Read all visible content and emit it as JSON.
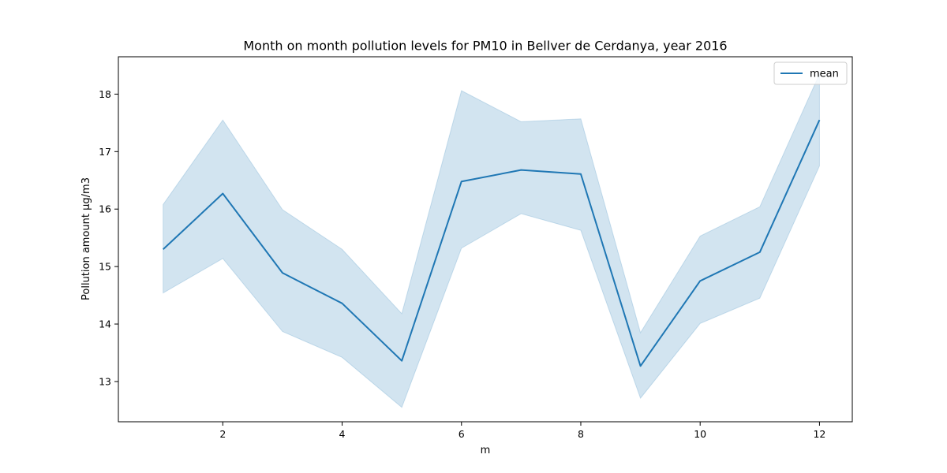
{
  "chart_data": {
    "type": "line",
    "title": "Month on month pollution levels for PM10 in Bellver de Cerdanya, year 2016",
    "xlabel": "m",
    "ylabel": "Pollution amount μg/m3",
    "xlim": [
      0.25,
      12.55
    ],
    "ylim": [
      12.3,
      18.65
    ],
    "xticks": [
      2,
      4,
      6,
      8,
      10,
      12
    ],
    "yticks": [
      13,
      14,
      15,
      16,
      17,
      18
    ],
    "grid": false,
    "legend_position": "top-right",
    "x": [
      1,
      2,
      3,
      4,
      5,
      6,
      7,
      8,
      9,
      10,
      11,
      12
    ],
    "series": [
      {
        "name": "mean",
        "color": "#1f77b4",
        "values": [
          15.3,
          16.27,
          14.89,
          14.36,
          13.36,
          16.48,
          16.68,
          16.61,
          13.27,
          14.75,
          15.25,
          17.55
        ],
        "band_lower": [
          14.54,
          15.14,
          13.87,
          13.42,
          12.55,
          15.32,
          15.92,
          15.63,
          12.71,
          14.01,
          14.45,
          16.75
        ],
        "band_upper": [
          16.08,
          17.55,
          15.99,
          15.3,
          14.18,
          18.06,
          17.52,
          17.57,
          13.85,
          15.53,
          16.04,
          18.35
        ]
      }
    ]
  }
}
